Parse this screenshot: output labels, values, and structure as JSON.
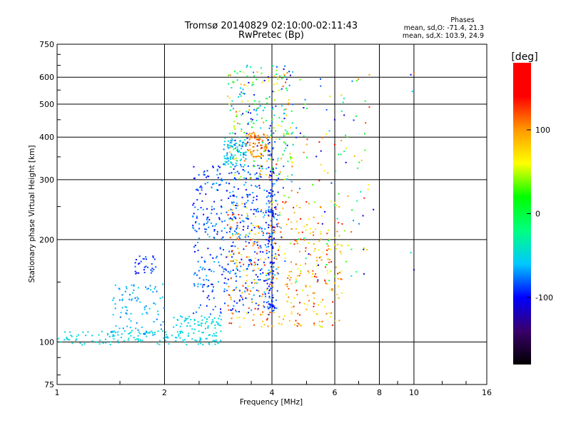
{
  "chart_data": {
    "type": "scatter",
    "title": "Tromsø 20140829 02:10:00-02:11:43",
    "subtitle": "RwPretec (Bp)",
    "xlabel": "Frequency [MHz]",
    "ylabel": "Stationary phase Virtual Height [km]",
    "x_scale": "log",
    "y_scale": "log",
    "xlim": [
      1,
      16
    ],
    "ylim": [
      75,
      750
    ],
    "x_ticks": [
      "1",
      "2",
      "4",
      "6",
      "8",
      "10",
      "16"
    ],
    "y_ticks": [
      "75",
      "100",
      "200",
      "300",
      "400",
      "500",
      "600",
      "750"
    ],
    "grid": true,
    "stats": {
      "heading": "Phases",
      "line_o": "mean, sd,O: -71.4, 21.3",
      "line_x": "mean, sd,X: 103.9, 24.9"
    },
    "colorbar": {
      "label": "[deg]",
      "ticks": [
        "100",
        "0",
        "-100"
      ],
      "tick_values": [
        100,
        0,
        -100
      ],
      "range": [
        -180,
        180
      ],
      "colors": [
        "#000000",
        "#3a006a",
        "#0000ff",
        "#00c8ff",
        "#00ff80",
        "#00ff00",
        "#ffff00",
        "#ff9900",
        "#ff0000",
        "#ff0000"
      ]
    },
    "clusters": [
      {
        "name": "o-trace-low",
        "x": [
          1.0,
          2.9
        ],
        "y": [
          98,
          108
        ],
        "phase": [
          -60,
          -40
        ],
        "n": 150
      },
      {
        "name": "o-trace-rise",
        "x": [
          1.4,
          2.0
        ],
        "y": [
          104,
          150
        ],
        "phase": [
          -80,
          -50
        ],
        "n": 90
      },
      {
        "name": "o-trace-175",
        "x": [
          1.65,
          1.9
        ],
        "y": [
          158,
          180
        ],
        "phase": [
          -100,
          -80
        ],
        "n": 30
      },
      {
        "name": "e-trace-110",
        "x": [
          2.1,
          2.9
        ],
        "y": [
          108,
          120
        ],
        "phase": [
          -60,
          -40
        ],
        "n": 60
      },
      {
        "name": "f-trace-mid",
        "x": [
          2.4,
          4.2
        ],
        "y": [
          120,
          330
        ],
        "phase": [
          -110,
          -60
        ],
        "n": 520
      },
      {
        "name": "x-trace-mid",
        "x": [
          3.0,
          6.3
        ],
        "y": [
          110,
          260
        ],
        "phase": [
          50,
          140
        ],
        "n": 380
      },
      {
        "name": "mixed-upper",
        "x": [
          3.0,
          4.6
        ],
        "y": [
          300,
          650
        ],
        "phase": [
          -120,
          120
        ],
        "n": 260
      },
      {
        "name": "f2-cusp-o",
        "x": [
          2.9,
          3.4
        ],
        "y": [
          330,
          400
        ],
        "phase": [
          -80,
          -40
        ],
        "n": 90
      },
      {
        "name": "f2-cusp-x",
        "x": [
          3.4,
          3.9
        ],
        "y": [
          350,
          410
        ],
        "phase": [
          90,
          130
        ],
        "n": 70
      },
      {
        "name": "scatter-high-f",
        "x": [
          4.0,
          7.5
        ],
        "y": [
          150,
          600
        ],
        "phase": [
          -120,
          140
        ],
        "n": 140
      },
      {
        "name": "f-column-4",
        "x": [
          3.9,
          4.05
        ],
        "y": [
          120,
          420
        ],
        "phase": [
          -110,
          -80
        ],
        "n": 100
      }
    ],
    "isolated_points": [
      {
        "x": 7.2,
        "y": 235,
        "phase": -110
      },
      {
        "x": 7.7,
        "y": 245,
        "phase": -110
      },
      {
        "x": 9.8,
        "y": 610,
        "phase": -110
      },
      {
        "x": 10.0,
        "y": 615,
        "phase": 110
      },
      {
        "x": 9.9,
        "y": 545,
        "phase": -60
      },
      {
        "x": 9.8,
        "y": 183,
        "phase": -50
      },
      {
        "x": 10.0,
        "y": 163,
        "phase": -120
      },
      {
        "x": 7.5,
        "y": 610,
        "phase": 100
      },
      {
        "x": 7.5,
        "y": 490,
        "phase": 130
      },
      {
        "x": 6.0,
        "y": 450,
        "phase": -110
      },
      {
        "x": 6.0,
        "y": 380,
        "phase": 140
      }
    ]
  }
}
